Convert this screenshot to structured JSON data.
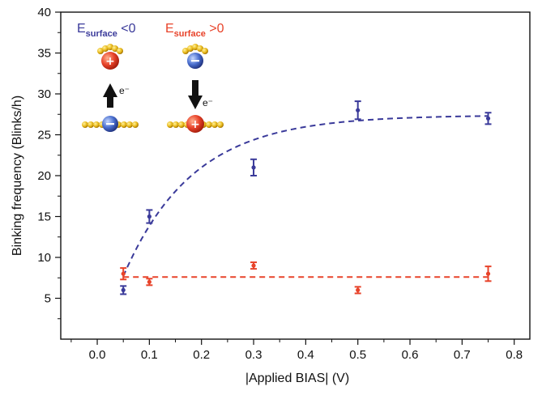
{
  "chart_data": {
    "type": "scatter",
    "xlabel": "|Applied BIAS| (V)",
    "ylabel": "Binking frequency (Blinks/h)",
    "xlim": [
      -0.07,
      0.83
    ],
    "ylim": [
      0,
      40
    ],
    "x_ticks": [
      "0.0",
      "0.1",
      "0.2",
      "0.3",
      "0.4",
      "0.5",
      "0.6",
      "0.7",
      "0.8"
    ],
    "y_ticks": [
      "5",
      "10",
      "15",
      "20",
      "25",
      "30",
      "35",
      "40"
    ],
    "series": [
      {
        "name": "E_surface <0",
        "color": "#3a3a9a",
        "points": [
          {
            "x": 0.05,
            "y": 6.0,
            "err": 0.5
          },
          {
            "x": 0.1,
            "y": 15.0,
            "err": 0.8
          },
          {
            "x": 0.3,
            "y": 21.0,
            "err": 1.0
          },
          {
            "x": 0.5,
            "y": 28.0,
            "err": 1.1
          },
          {
            "x": 0.75,
            "y": 27.0,
            "err": 0.7
          }
        ],
        "fit": {
          "style": "dashed",
          "model": "exponential",
          "y_at_x0": 7.7,
          "plateau": 27.4,
          "rate": 7.5,
          "x_start": 0.05
        }
      },
      {
        "name": "E_surface >0",
        "color": "#e8432a",
        "points": [
          {
            "x": 0.05,
            "y": 8.0,
            "err": 0.7
          },
          {
            "x": 0.1,
            "y": 7.0,
            "err": 0.4
          },
          {
            "x": 0.3,
            "y": 9.0,
            "err": 0.4
          },
          {
            "x": 0.5,
            "y": 6.0,
            "err": 0.4
          },
          {
            "x": 0.75,
            "y": 8.0,
            "err": 0.9
          }
        ],
        "fit": {
          "style": "dashed",
          "model": "constant",
          "y": 7.6
        }
      }
    ],
    "legend_inset": {
      "left": {
        "label_main": "E",
        "label_sub": "surface",
        "label_tail": " <0",
        "color": "#3a3a9a",
        "arrow": "up",
        "electron": "e⁻"
      },
      "right": {
        "label_main": "E",
        "label_sub": "surface",
        "label_tail": " >0",
        "color": "#e8432a",
        "arrow": "down",
        "electron": "e⁻"
      }
    }
  }
}
